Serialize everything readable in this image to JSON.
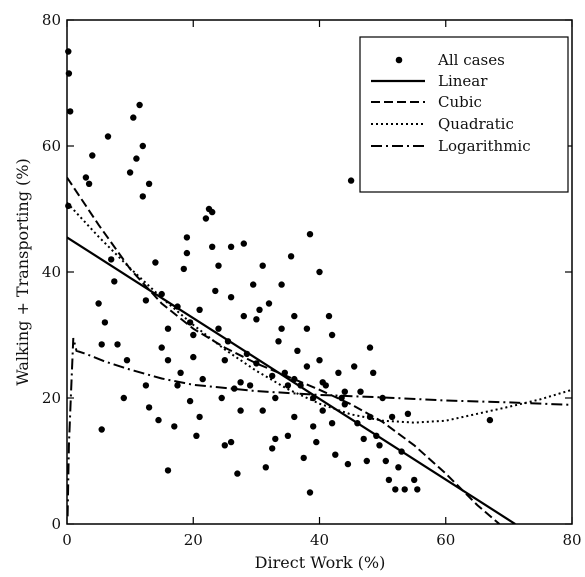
{
  "chart_data": {
    "type": "scatter",
    "xlabel": "Direct Work (%)",
    "ylabel": "Walking + Transporting (%)",
    "xlim": [
      0,
      80
    ],
    "ylim": [
      0,
      80
    ],
    "xticks": [
      "0",
      "20",
      "40",
      "60",
      "80"
    ],
    "yticks": [
      "0",
      "20",
      "40",
      "60",
      "80"
    ],
    "legend_position": "top-right",
    "grid": false,
    "legend": [
      {
        "key": "points",
        "label": "All cases",
        "style": "dot"
      },
      {
        "key": "linear",
        "label": "Linear",
        "style": "solid"
      },
      {
        "key": "cubic",
        "label": "Cubic",
        "style": "dashed"
      },
      {
        "key": "quadratic",
        "label": "Quadratic",
        "style": "dotted"
      },
      {
        "key": "logarithmic",
        "label": "Logarithmic",
        "style": "dashdot"
      }
    ],
    "points": [
      [
        0.2,
        75
      ],
      [
        0.3,
        71.5
      ],
      [
        0.5,
        65.5
      ],
      [
        0.2,
        50.5
      ],
      [
        3,
        55
      ],
      [
        3.5,
        54
      ],
      [
        4,
        58.5
      ],
      [
        5,
        35
      ],
      [
        5.5,
        28.5
      ],
      [
        5.5,
        15
      ],
      [
        6,
        32
      ],
      [
        6.5,
        61.5
      ],
      [
        7,
        42
      ],
      [
        7.5,
        38.5
      ],
      [
        8,
        28.5
      ],
      [
        10,
        55.8
      ],
      [
        10.5,
        64.5
      ],
      [
        11,
        58
      ],
      [
        11.5,
        66.5
      ],
      [
        12,
        60
      ],
      [
        12,
        52
      ],
      [
        12.5,
        35.5
      ],
      [
        13,
        54
      ],
      [
        13,
        18.5
      ],
      [
        14,
        41.5
      ],
      [
        14.5,
        16.5
      ],
      [
        15,
        36.5
      ],
      [
        15,
        28
      ],
      [
        16,
        31
      ],
      [
        16,
        26
      ],
      [
        17,
        15.5
      ],
      [
        17.5,
        22
      ],
      [
        18,
        24
      ],
      [
        18.5,
        40.5
      ],
      [
        19,
        43
      ],
      [
        19,
        45.5
      ],
      [
        19.5,
        32
      ],
      [
        20,
        30
      ],
      [
        20,
        26.5
      ],
      [
        20.5,
        14
      ],
      [
        21,
        17
      ],
      [
        21.5,
        23
      ],
      [
        22,
        48.5
      ],
      [
        22.5,
        50
      ],
      [
        23,
        49.5
      ],
      [
        23.5,
        37
      ],
      [
        24,
        41
      ],
      [
        24,
        31
      ],
      [
        24.5,
        20
      ],
      [
        25,
        12.5
      ],
      [
        25.5,
        29
      ],
      [
        26,
        44
      ],
      [
        26,
        36
      ],
      [
        26.5,
        21.5
      ],
      [
        27,
        8
      ],
      [
        27.5,
        18
      ],
      [
        28,
        44.5
      ],
      [
        28,
        33
      ],
      [
        28.5,
        27
      ],
      [
        29,
        22
      ],
      [
        30,
        32.5
      ],
      [
        30,
        25.5
      ],
      [
        31,
        41
      ],
      [
        31,
        18
      ],
      [
        31.5,
        9
      ],
      [
        32,
        35
      ],
      [
        32.5,
        23.5
      ],
      [
        33,
        20
      ],
      [
        33,
        13.5
      ],
      [
        33.5,
        29
      ],
      [
        34,
        38
      ],
      [
        34,
        31
      ],
      [
        34.5,
        24
      ],
      [
        35,
        22
      ],
      [
        35,
        14
      ],
      [
        35.5,
        42.5
      ],
      [
        36,
        33
      ],
      [
        36,
        17
      ],
      [
        36.5,
        27.5
      ],
      [
        37,
        22
      ],
      [
        37.5,
        10.5
      ],
      [
        38,
        25
      ],
      [
        38,
        31
      ],
      [
        38.5,
        46
      ],
      [
        39,
        20
      ],
      [
        39,
        15.5
      ],
      [
        39.5,
        13
      ],
      [
        40,
        40
      ],
      [
        40,
        26
      ],
      [
        40.5,
        18
      ],
      [
        41,
        22
      ],
      [
        41.5,
        33
      ],
      [
        42,
        30
      ],
      [
        42,
        16
      ],
      [
        42.5,
        11
      ],
      [
        43,
        24
      ],
      [
        43.5,
        20
      ],
      [
        44,
        19
      ],
      [
        44.5,
        9.5
      ],
      [
        45,
        54.5
      ],
      [
        45.5,
        25
      ],
      [
        46,
        16
      ],
      [
        46.5,
        21
      ],
      [
        47,
        13.5
      ],
      [
        47.5,
        10
      ],
      [
        48,
        28
      ],
      [
        48,
        17
      ],
      [
        48.5,
        24
      ],
      [
        49,
        14
      ],
      [
        49.5,
        12.5
      ],
      [
        50,
        20
      ],
      [
        50.5,
        10
      ],
      [
        51,
        7
      ],
      [
        51.5,
        17
      ],
      [
        52,
        5.5
      ],
      [
        52.5,
        9
      ],
      [
        53,
        11.5
      ],
      [
        53.5,
        5.5
      ],
      [
        54,
        17.5
      ],
      [
        55,
        7
      ],
      [
        55.5,
        5.5
      ],
      [
        67,
        16.5
      ],
      [
        27.5,
        22.5
      ],
      [
        30.5,
        34
      ],
      [
        21,
        34
      ],
      [
        25,
        26
      ],
      [
        17.5,
        34.5
      ],
      [
        23,
        44
      ],
      [
        29.5,
        38
      ],
      [
        32.5,
        12
      ],
      [
        36,
        23
      ],
      [
        40.5,
        22.5
      ],
      [
        44,
        21
      ],
      [
        38.5,
        5
      ],
      [
        19.5,
        19.5
      ],
      [
        12.5,
        22
      ],
      [
        9,
        20
      ],
      [
        9.5,
        26
      ],
      [
        16,
        8.5
      ],
      [
        26,
        13
      ]
    ],
    "curves": {
      "linear": [
        [
          0,
          45.5
        ],
        [
          71,
          0
        ]
      ],
      "quadratic": [
        [
          0,
          51
        ],
        [
          5,
          45.6
        ],
        [
          10,
          40.6
        ],
        [
          15,
          35.9
        ],
        [
          20,
          31.6
        ],
        [
          25,
          27.7
        ],
        [
          30,
          24.3
        ],
        [
          35,
          21.4
        ],
        [
          40,
          19.1
        ],
        [
          45,
          17.4
        ],
        [
          50,
          16.4
        ],
        [
          55,
          16.1
        ],
        [
          60,
          16.4
        ],
        [
          65,
          17.5
        ],
        [
          70,
          18.6
        ],
        [
          75,
          19.8
        ],
        [
          80,
          21.3
        ]
      ],
      "cubic": [
        [
          0,
          55
        ],
        [
          5,
          47.5
        ],
        [
          10,
          40.5
        ],
        [
          15,
          35
        ],
        [
          20,
          31
        ],
        [
          25,
          28
        ],
        [
          30,
          25.5
        ],
        [
          35,
          23.4
        ],
        [
          40,
          21.3
        ],
        [
          45,
          19
        ],
        [
          50,
          16.2
        ],
        [
          55,
          12.5
        ],
        [
          60,
          8
        ],
        [
          65,
          3
        ],
        [
          68.5,
          0
        ]
      ],
      "logarithmic": [
        [
          0.1,
          1.2
        ],
        [
          0.3,
          12.5
        ],
        [
          0.6,
          20
        ],
        [
          1,
          29.5
        ],
        [
          1.5,
          27.5
        ],
        [
          3,
          27
        ],
        [
          6,
          25.8
        ],
        [
          10,
          24.5
        ],
        [
          15,
          23.1
        ],
        [
          20,
          22.1
        ],
        [
          30,
          21.1
        ],
        [
          40,
          20.5
        ],
        [
          50,
          20.1
        ],
        [
          60,
          19.6
        ],
        [
          70,
          19.3
        ],
        [
          80,
          18.9
        ]
      ]
    }
  }
}
